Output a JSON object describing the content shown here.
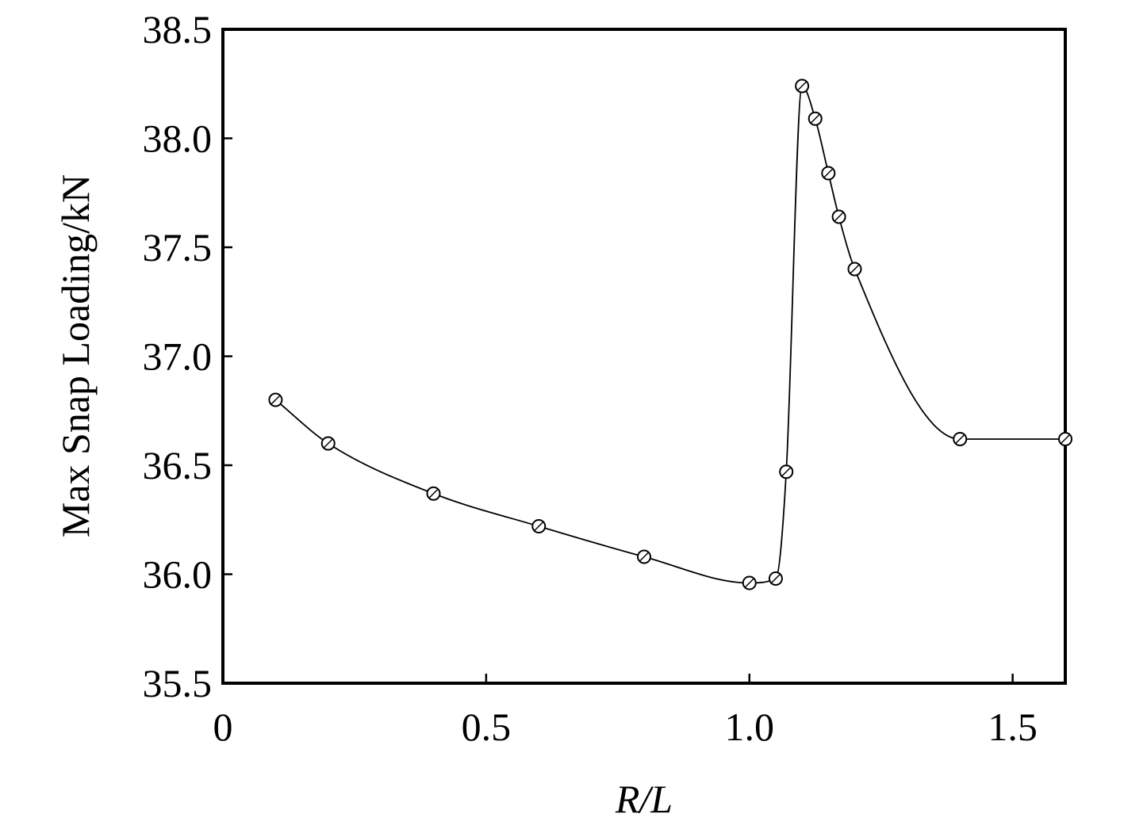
{
  "chart_data": {
    "type": "line",
    "title": "",
    "xlabel": "R/L",
    "ylabel": "Max Snap Loading/kN",
    "xlim": [
      0,
      1.6
    ],
    "ylim": [
      35.5,
      38.5
    ],
    "xticks": [
      0,
      0.5,
      1.0,
      1.5
    ],
    "xtick_labels": [
      "0",
      "0.5",
      "1.0",
      "1.5"
    ],
    "yticks": [
      35.5,
      36.0,
      36.5,
      37.0,
      37.5,
      38.0,
      38.5
    ],
    "ytick_labels": [
      "35.5",
      "36.0",
      "36.5",
      "37.0",
      "37.5",
      "38.0",
      "38.5"
    ],
    "grid": false,
    "legend": "none",
    "series": [
      {
        "marker": "open-circle",
        "color": "#000000",
        "x": [
          0.1,
          0.2,
          0.4,
          0.6,
          0.8,
          1.0,
          1.05,
          1.07,
          1.1,
          1.125,
          1.15,
          1.17,
          1.2,
          1.4,
          1.6
        ],
        "y": [
          36.8,
          36.6,
          36.37,
          36.22,
          36.08,
          35.96,
          35.98,
          36.47,
          38.24,
          38.09,
          37.84,
          37.64,
          37.4,
          36.62,
          36.62
        ]
      }
    ]
  }
}
